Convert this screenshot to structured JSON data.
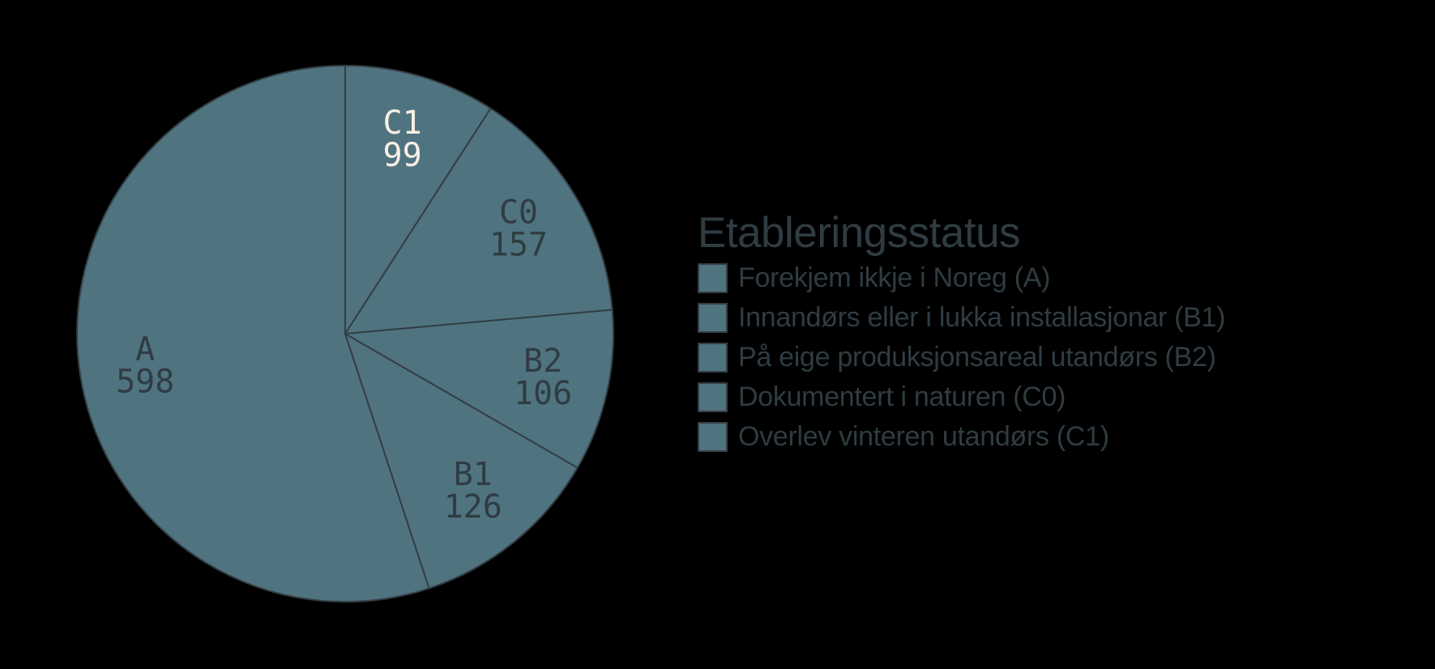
{
  "background": "#000000",
  "chart_data": {
    "type": "pie",
    "title": "",
    "legend_title": "Etableringsstatus",
    "legend_position": "right",
    "labels_show": "label+value",
    "direction": "counterclockwise",
    "start_angle": 90,
    "total": 1086,
    "slice_fill": "#507380",
    "slice_line_color": "#333e44",
    "text_dark": "#2f3c42",
    "text_light": "#f7f0e4",
    "slices": [
      {
        "label": "A",
        "value": 598,
        "legend": "Forekjem ikkje i Noreg (A)",
        "label_color": "#2f3c42"
      },
      {
        "label": "B1",
        "value": 126,
        "legend": "Innandørs eller i lukka installasjonar (B1)",
        "label_color": "#2f3c42"
      },
      {
        "label": "B2",
        "value": 106,
        "legend": "På eige produksjonsareal utandørs (B2)",
        "label_color": "#2f3c42"
      },
      {
        "label": "C0",
        "value": 157,
        "legend": "Dokumentert i naturen (C0)",
        "label_color": "#2f3c42"
      },
      {
        "label": "C1",
        "value": 99,
        "legend": "Overlev vinteren utandørs (C1)",
        "label_color": "#f7f0e4"
      }
    ]
  }
}
